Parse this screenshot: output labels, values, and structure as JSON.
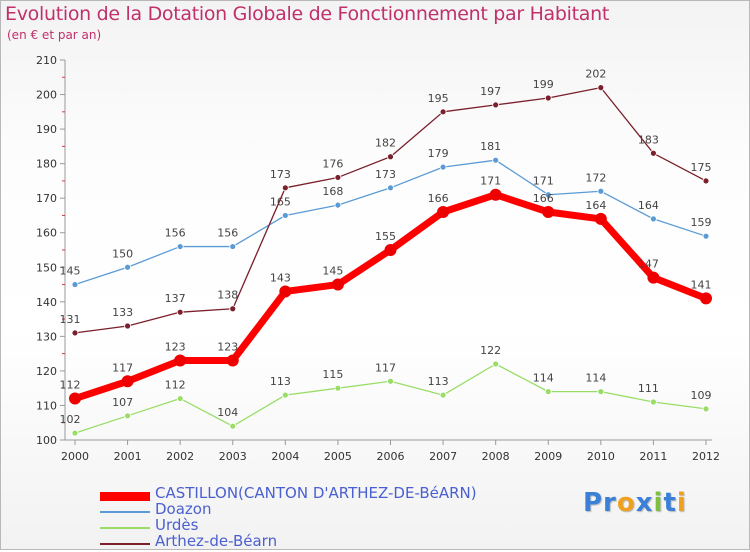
{
  "chart_data": {
    "type": "line",
    "title": "Evolution de la Dotation Globale de Fonctionnement par Habitant",
    "subtitle": "(en € et par an)",
    "xlabel": "",
    "ylabel": "",
    "x": [
      "2000",
      "2001",
      "2002",
      "2003",
      "2004",
      "2005",
      "2006",
      "2007",
      "2008",
      "2009",
      "2010",
      "2011",
      "2012"
    ],
    "ylim": [
      100,
      210
    ],
    "yticks": [
      100,
      110,
      120,
      130,
      140,
      150,
      160,
      170,
      180,
      190,
      200,
      210
    ],
    "grid": false,
    "legend_position": "bottom-left",
    "series": [
      {
        "name": "CASTILLON(CANTON D'ARTHEZ-DE-BéARN)",
        "color": "#ff0000",
        "emphasis": true,
        "values": [
          112,
          117,
          123,
          123,
          143,
          145,
          155,
          166,
          171,
          166,
          164,
          147,
          141
        ]
      },
      {
        "name": "Doazon",
        "color": "#5b9bd5",
        "emphasis": false,
        "values": [
          145,
          150,
          156,
          156,
          165,
          168,
          173,
          179,
          181,
          171,
          172,
          164,
          159
        ]
      },
      {
        "name": "Urdès",
        "color": "#99dd66",
        "emphasis": false,
        "values": [
          102,
          107,
          112,
          104,
          113,
          115,
          117,
          113,
          122,
          114,
          114,
          111,
          109
        ]
      },
      {
        "name": "Arthez-de-Béarn",
        "color": "#7a1f2b",
        "emphasis": false,
        "values": [
          131,
          133,
          137,
          138,
          173,
          176,
          182,
          195,
          197,
          199,
          202,
          183,
          175
        ]
      }
    ]
  },
  "logo": {
    "parts": [
      "Pr",
      "o",
      "x",
      "i",
      "t",
      "i"
    ],
    "colors": [
      "#3a7fd8",
      "#f0a020",
      "#3a7fd8",
      "#7fc040",
      "#3a7fd8",
      "#f0a020"
    ]
  }
}
